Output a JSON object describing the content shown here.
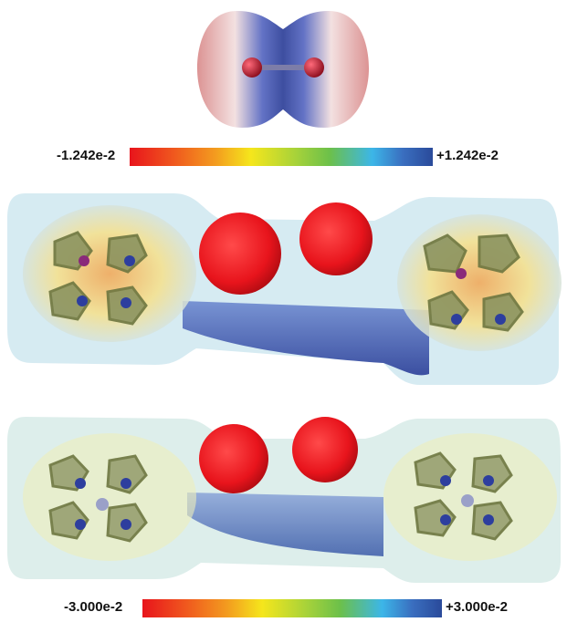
{
  "figure": {
    "top_colorbar": {
      "min_label": "-1.242e-2",
      "max_label": "+1.242e-2"
    },
    "bottom_colorbar": {
      "min_label": "-3.000e-2",
      "max_label": "+3.000e-2"
    },
    "colors": {
      "negative_red": "#e8141c",
      "orange": "#f39a1f",
      "yellow": "#f5e61c",
      "green": "#6cc04a",
      "cyan": "#3cb6e8",
      "positive_blue": "#2a4a9a"
    },
    "panels": [
      "o2-molecule-esp",
      "porphyrin-dimer-esp-with-h",
      "porphyrin-dimer-esp-metal"
    ]
  }
}
